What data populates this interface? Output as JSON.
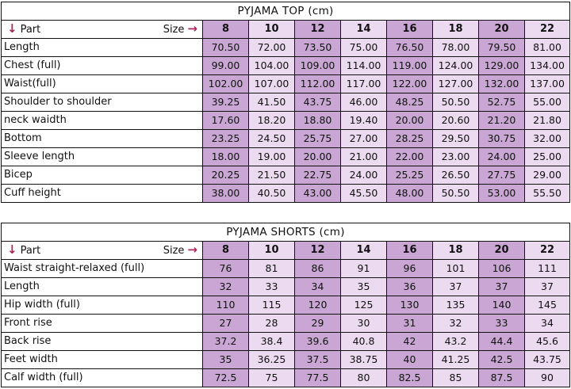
{
  "top": {
    "title": "PYJAMA TOP (cm)",
    "part_label": "Part",
    "size_label": "Size",
    "sizes": [
      "8",
      "10",
      "12",
      "14",
      "16",
      "18",
      "20",
      "22"
    ],
    "rows": [
      {
        "label": "Length",
        "values": [
          "70.50",
          "72.00",
          "73.50",
          "75.00",
          "76.50",
          "78.00",
          "79.50",
          "81.00"
        ]
      },
      {
        "label": "Chest (full)",
        "values": [
          "99.00",
          "104.00",
          "109.00",
          "114.00",
          "119.00",
          "124.00",
          "129.00",
          "134.00"
        ]
      },
      {
        "label": "Waist(full)",
        "values": [
          "102.00",
          "107.00",
          "112.00",
          "117.00",
          "122.00",
          "127.00",
          "132.00",
          "137.00"
        ]
      },
      {
        "label": "Shoulder to shoulder",
        "values": [
          "39.25",
          "41.50",
          "43.75",
          "46.00",
          "48.25",
          "50.50",
          "52.75",
          "55.00"
        ]
      },
      {
        "label": "neck waidth",
        "values": [
          "17.60",
          "18.20",
          "18.80",
          "19.40",
          "20.00",
          "20.60",
          "21.20",
          "21.80"
        ]
      },
      {
        "label": "Bottom",
        "values": [
          "23.25",
          "24.50",
          "25.75",
          "27.00",
          "28.25",
          "29.50",
          "30.75",
          "32.00"
        ]
      },
      {
        "label": "Sleeve length",
        "values": [
          "18.00",
          "19.00",
          "20.00",
          "21.00",
          "22.00",
          "23.00",
          "24.00",
          "25.00"
        ]
      },
      {
        "label": "Bicep",
        "values": [
          "20.25",
          "21.50",
          "22.75",
          "24.00",
          "25.25",
          "26.50",
          "27.75",
          "29.00"
        ]
      },
      {
        "label": "Cuff height",
        "values": [
          "38.00",
          "40.50",
          "43.00",
          "45.50",
          "48.00",
          "50.50",
          "53.00",
          "55.50"
        ]
      }
    ]
  },
  "shorts": {
    "title": "PYJAMA SHORTS (cm)",
    "part_label": "Part",
    "size_label": "Size",
    "sizes": [
      "8",
      "10",
      "12",
      "14",
      "16",
      "18",
      "20",
      "22"
    ],
    "rows": [
      {
        "label": "Waist straight-relaxed (full)",
        "values": [
          "76",
          "81",
          "86",
          "91",
          "96",
          "101",
          "106",
          "111"
        ]
      },
      {
        "label": "Length",
        "values": [
          "32",
          "33",
          "34",
          "35",
          "36",
          "37",
          "37",
          "37"
        ]
      },
      {
        "label": "Hip width (full)",
        "values": [
          "110",
          "115",
          "120",
          "125",
          "130",
          "135",
          "140",
          "145"
        ]
      },
      {
        "label": "Front rise",
        "values": [
          "27",
          "28",
          "29",
          "30",
          "31",
          "32",
          "33",
          "34"
        ]
      },
      {
        "label": "Back rise",
        "values": [
          "37.2",
          "38.4",
          "39.6",
          "40.8",
          "42",
          "43.2",
          "44.4",
          "45.6"
        ]
      },
      {
        "label": "Feet width",
        "values": [
          "35",
          "36.25",
          "37.5",
          "38.75",
          "40",
          "41.25",
          "42.5",
          "43.75"
        ]
      },
      {
        "label": "Calf width (full)",
        "values": [
          "72.5",
          "75",
          "77.5",
          "80",
          "82.5",
          "85",
          "87.5",
          "90"
        ]
      }
    ]
  }
}
